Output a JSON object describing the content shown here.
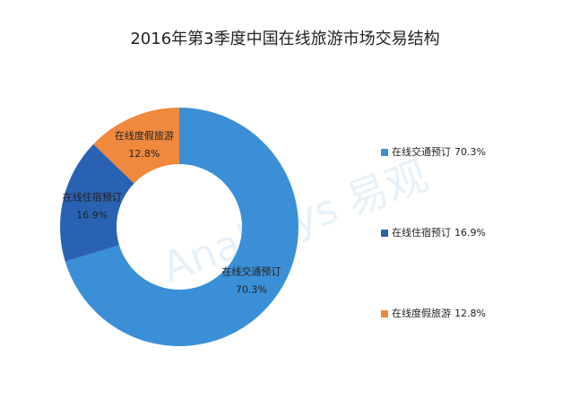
{
  "chart_data": {
    "type": "donut",
    "title": "2016年第3季度中国在线旅游市场交易结构",
    "categories": [
      "在线交通预订",
      "在线住宿预订",
      "在线度假旅游"
    ],
    "values": [
      70.3,
      16.9,
      12.8
    ],
    "value_labels": [
      "70.3%",
      "16.9%",
      "12.8%"
    ],
    "colors": [
      "#3b8fd6",
      "#2a62b3",
      "#f0883d"
    ],
    "legend": "right",
    "watermark": "Analysys 易观"
  }
}
